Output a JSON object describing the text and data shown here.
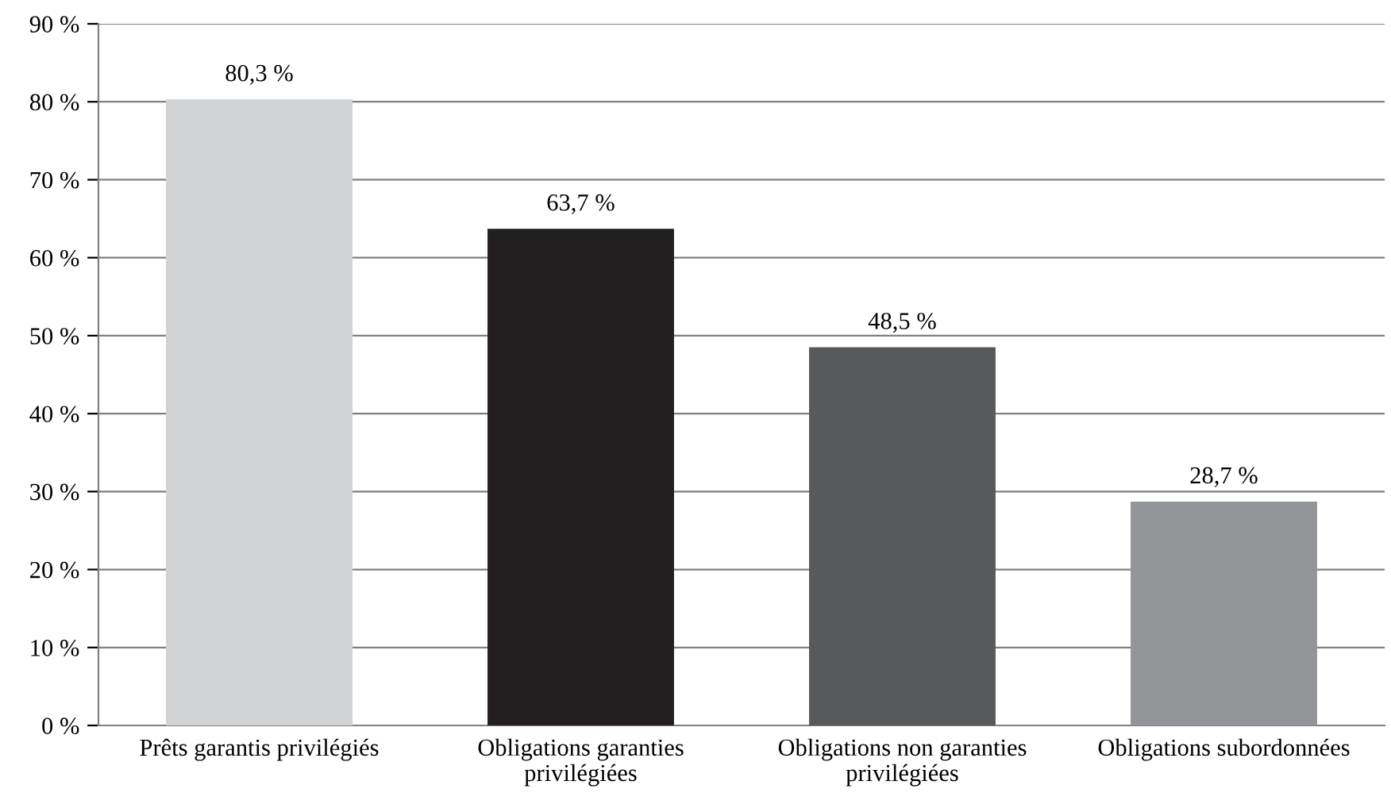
{
  "chart_data": {
    "type": "bar",
    "categories": [
      "Prêts garantis privilégiés",
      "Obligations garanties\nprivilégiées",
      "Obligations non garanties\nprivilégiées",
      "Obligations subordonnées"
    ],
    "values": [
      80.3,
      63.7,
      48.5,
      28.7
    ],
    "colors": [
      "#d1d2d4",
      "#231f20",
      "#58595b",
      "#939598"
    ],
    "value_labels": [
      "80,3 %",
      "63,7 %",
      "48,5 %",
      "28,7 %"
    ],
    "ylim": [
      0,
      90
    ],
    "yticks": [
      {
        "value": 0,
        "label": "0 %"
      },
      {
        "value": 10,
        "label": "10 %"
      },
      {
        "value": 20,
        "label": "20 %"
      },
      {
        "value": 30,
        "label": "30 %"
      },
      {
        "value": 40,
        "label": "40 %"
      },
      {
        "value": 50,
        "label": "50 %"
      },
      {
        "value": 60,
        "label": "60 %"
      },
      {
        "value": 70,
        "label": "70 %"
      },
      {
        "value": 80,
        "label": "80 %"
      },
      {
        "value": 90,
        "label": "90 %"
      }
    ],
    "grid": "y"
  }
}
